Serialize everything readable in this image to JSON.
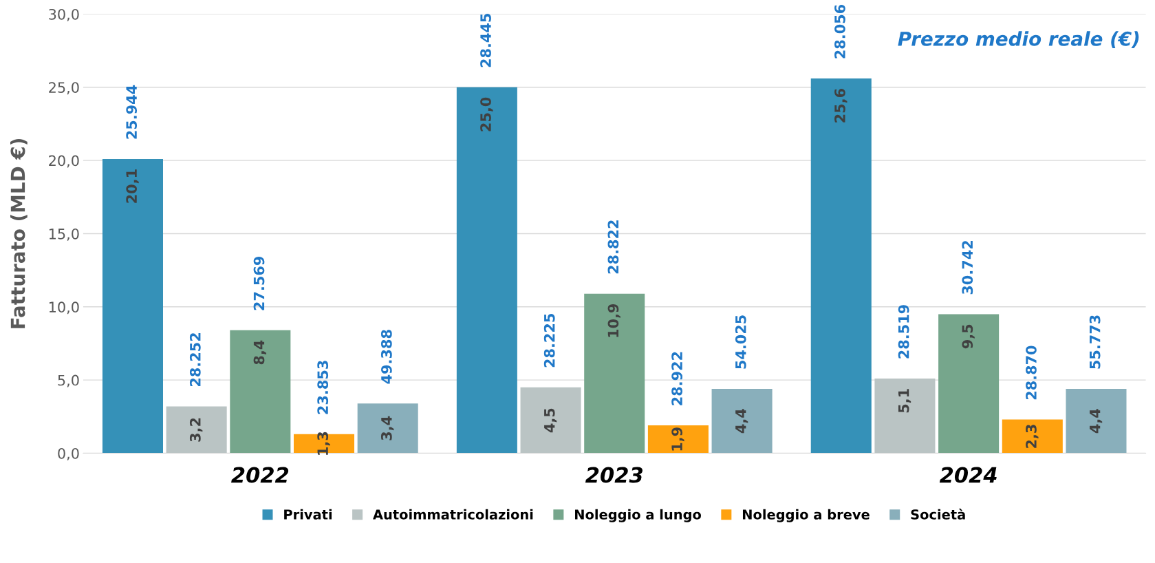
{
  "chart_data": {
    "type": "bar",
    "categories": [
      "2022",
      "2023",
      "2024"
    ],
    "ylabel": "Fatturato (MLD €)",
    "series": [
      {
        "name": "Privati",
        "color": "#3591b8",
        "values": [
          20.1,
          25.0,
          25.6
        ],
        "value_labels": [
          "20,1",
          "25,0",
          "25,6"
        ]
      },
      {
        "name": "Autoimmatricolazioni",
        "color": "#bac4c4",
        "values": [
          3.2,
          4.5,
          5.1
        ],
        "value_labels": [
          "3,2",
          "4,5",
          "5,1"
        ]
      },
      {
        "name": "Noleggio a lungo",
        "color": "#76a68c",
        "values": [
          8.4,
          10.9,
          9.5
        ],
        "value_labels": [
          "8,4",
          "10,9",
          "9,5"
        ]
      },
      {
        "name": "Noleggio a breve",
        "color": "#ffa20f",
        "values": [
          1.3,
          1.9,
          2.3
        ],
        "value_labels": [
          "1,3",
          "1,9",
          "2,3"
        ]
      },
      {
        "name": "Società",
        "color": "#89afbb",
        "values": [
          3.4,
          4.4,
          4.4
        ],
        "value_labels": [
          "3,4",
          "4,4",
          "4,4"
        ]
      }
    ],
    "ylim": [
      0,
      30
    ],
    "yticks": [
      {
        "value": 0,
        "label": "0,0"
      },
      {
        "value": 5,
        "label": "5,0"
      },
      {
        "value": 10,
        "label": "10,0"
      },
      {
        "value": 15,
        "label": "15,0"
      },
      {
        "value": 20,
        "label": "20,0"
      },
      {
        "value": 25,
        "label": "25,0"
      },
      {
        "value": 30,
        "label": "30,0"
      }
    ],
    "grid": "y",
    "legend": "bottom",
    "annotations": [
      "25.944",
      "28.445",
      "28.056",
      "28.252",
      "28.225",
      "28.519",
      "27.569",
      "28.822",
      "30.742",
      "23.853",
      "28.922",
      "28.870",
      "49.388",
      "54.025",
      "55.773",
      "Prezzo medio reale (€)"
    ]
  }
}
